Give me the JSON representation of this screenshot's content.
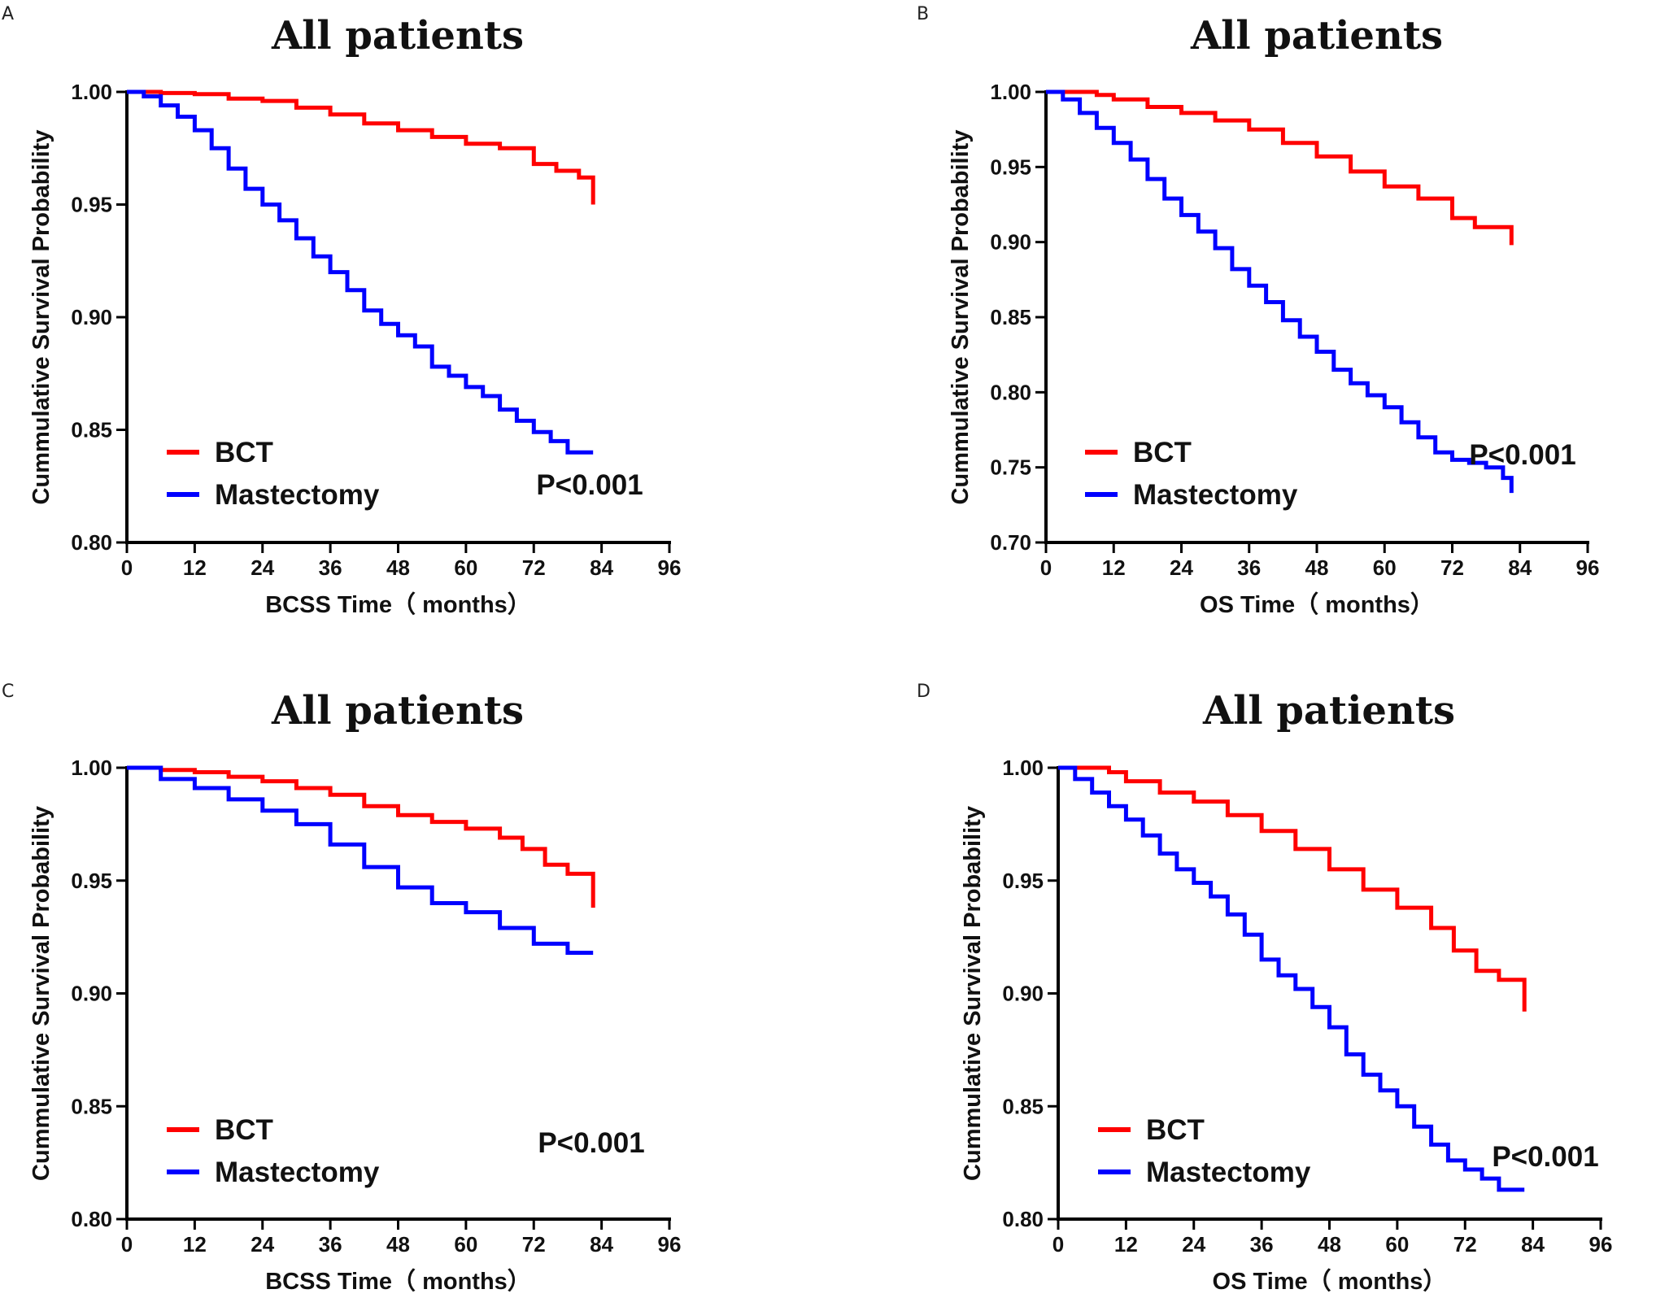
{
  "figure": {
    "background": "#ffffff"
  },
  "chart_data": [
    {
      "panel": "A",
      "type": "line",
      "step": true,
      "title": "All patients",
      "xlabel": "BCSS Time（ months）",
      "ylabel": "Cummulative Survival Probability",
      "xlim": [
        0,
        96
      ],
      "ylim": [
        0.8,
        1.0
      ],
      "xticks": [
        "0",
        "12",
        "24",
        "36",
        "48",
        "60",
        "72",
        "84",
        "96"
      ],
      "yticks": [
        "0.80",
        "0.85",
        "0.90",
        "0.95",
        "1.00"
      ],
      "pvalue": "P<0.001",
      "series": [
        {
          "name": "BCT",
          "color": "#ff0000",
          "x": [
            0,
            6,
            12,
            18,
            24,
            30,
            36,
            42,
            48,
            54,
            60,
            66,
            72,
            76,
            80,
            82.5,
            82.5
          ],
          "y": [
            1.0,
            0.9995,
            0.999,
            0.997,
            0.996,
            0.993,
            0.99,
            0.986,
            0.983,
            0.98,
            0.977,
            0.975,
            0.968,
            0.965,
            0.962,
            0.962,
            0.95
          ]
        },
        {
          "name": "Mastectomy",
          "color": "#0000ff",
          "x": [
            0,
            3,
            6,
            9,
            12,
            15,
            18,
            21,
            24,
            27,
            30,
            33,
            36,
            39,
            42,
            45,
            48,
            51,
            54,
            57,
            60,
            63,
            66,
            69,
            72,
            75,
            78,
            82.5
          ],
          "y": [
            1.0,
            0.998,
            0.994,
            0.989,
            0.983,
            0.975,
            0.966,
            0.957,
            0.95,
            0.943,
            0.935,
            0.927,
            0.92,
            0.912,
            0.903,
            0.897,
            0.892,
            0.887,
            0.878,
            0.874,
            0.869,
            0.865,
            0.859,
            0.854,
            0.849,
            0.845,
            0.84,
            0.84
          ]
        }
      ]
    },
    {
      "panel": "B",
      "type": "line",
      "step": true,
      "title": "All patients",
      "xlabel": "OS Time（ months）",
      "ylabel": "Cummulative Survival Probability",
      "xlim": [
        0,
        96
      ],
      "ylim": [
        0.7,
        1.0
      ],
      "xticks": [
        "0",
        "12",
        "24",
        "36",
        "48",
        "60",
        "72",
        "84",
        "96"
      ],
      "yticks": [
        "0.70",
        "0.75",
        "0.80",
        "0.85",
        "0.90",
        "0.95",
        "1.00"
      ],
      "pvalue": "P<0.001",
      "series": [
        {
          "name": "BCT",
          "color": "#ff0000",
          "x": [
            0,
            6,
            9,
            12,
            18,
            24,
            30,
            36,
            42,
            48,
            54,
            60,
            66,
            72,
            76,
            80,
            82.5,
            82.5
          ],
          "y": [
            1.0,
            1.0,
            0.998,
            0.995,
            0.99,
            0.986,
            0.981,
            0.975,
            0.966,
            0.957,
            0.947,
            0.937,
            0.929,
            0.916,
            0.91,
            0.91,
            0.91,
            0.898
          ]
        },
        {
          "name": "Mastectomy",
          "color": "#0000ff",
          "x": [
            0,
            3,
            6,
            9,
            12,
            15,
            18,
            21,
            24,
            27,
            30,
            33,
            36,
            39,
            42,
            45,
            48,
            51,
            54,
            57,
            60,
            63,
            66,
            69,
            72,
            75,
            78,
            81,
            82.5
          ],
          "y": [
            1.0,
            0.995,
            0.986,
            0.976,
            0.966,
            0.955,
            0.942,
            0.929,
            0.918,
            0.907,
            0.896,
            0.882,
            0.871,
            0.86,
            0.848,
            0.837,
            0.827,
            0.815,
            0.806,
            0.798,
            0.79,
            0.78,
            0.77,
            0.76,
            0.755,
            0.753,
            0.75,
            0.743,
            0.733
          ]
        }
      ]
    },
    {
      "panel": "C",
      "type": "line",
      "step": true,
      "title": "All patients",
      "xlabel": "BCSS Time（ months）",
      "ylabel": "Cummulative Survival Probability",
      "xlim": [
        0,
        96
      ],
      "ylim": [
        0.8,
        1.0
      ],
      "xticks": [
        "0",
        "12",
        "24",
        "36",
        "48",
        "60",
        "72",
        "84",
        "96"
      ],
      "yticks": [
        "0.80",
        "0.85",
        "0.90",
        "0.95",
        "1.00"
      ],
      "pvalue": "P<0.001",
      "series": [
        {
          "name": "BCT",
          "color": "#ff0000",
          "x": [
            0,
            6,
            12,
            18,
            24,
            30,
            36,
            42,
            48,
            54,
            60,
            66,
            70,
            74,
            78,
            82.5,
            82.5
          ],
          "y": [
            1.0,
            0.999,
            0.998,
            0.996,
            0.994,
            0.991,
            0.988,
            0.983,
            0.979,
            0.976,
            0.973,
            0.969,
            0.964,
            0.957,
            0.953,
            0.953,
            0.938
          ]
        },
        {
          "name": "Mastectomy",
          "color": "#0000ff",
          "x": [
            0,
            6,
            12,
            18,
            24,
            30,
            36,
            42,
            48,
            54,
            60,
            66,
            72,
            78,
            82.5
          ],
          "y": [
            1.0,
            0.995,
            0.991,
            0.986,
            0.981,
            0.975,
            0.966,
            0.956,
            0.947,
            0.94,
            0.936,
            0.929,
            0.922,
            0.918,
            0.918
          ]
        }
      ]
    },
    {
      "panel": "D",
      "type": "line",
      "step": true,
      "title": "All patients",
      "xlabel": "OS Time（ months）",
      "ylabel": "Cummulative Survival Probability",
      "xlim": [
        0,
        96
      ],
      "ylim": [
        0.8,
        1.0
      ],
      "xticks": [
        "0",
        "12",
        "24",
        "36",
        "48",
        "60",
        "72",
        "84",
        "96"
      ],
      "yticks": [
        "0.80",
        "0.85",
        "0.90",
        "0.95",
        "1.00"
      ],
      "pvalue": "P<0.001",
      "series": [
        {
          "name": "BCT",
          "color": "#ff0000",
          "x": [
            0,
            6,
            9,
            12,
            18,
            24,
            30,
            36,
            42,
            48,
            54,
            60,
            66,
            70,
            74,
            78,
            82.5,
            82.5
          ],
          "y": [
            1.0,
            1.0,
            0.998,
            0.994,
            0.989,
            0.985,
            0.979,
            0.972,
            0.964,
            0.955,
            0.946,
            0.938,
            0.929,
            0.919,
            0.91,
            0.906,
            0.906,
            0.892
          ]
        },
        {
          "name": "Mastectomy",
          "color": "#0000ff",
          "x": [
            0,
            3,
            6,
            9,
            12,
            15,
            18,
            21,
            24,
            27,
            30,
            33,
            36,
            39,
            42,
            45,
            48,
            51,
            54,
            57,
            60,
            63,
            66,
            69,
            72,
            75,
            78,
            82.5
          ],
          "y": [
            1.0,
            0.995,
            0.989,
            0.983,
            0.977,
            0.97,
            0.962,
            0.955,
            0.949,
            0.943,
            0.935,
            0.926,
            0.915,
            0.908,
            0.902,
            0.894,
            0.885,
            0.873,
            0.864,
            0.857,
            0.85,
            0.841,
            0.833,
            0.826,
            0.822,
            0.818,
            0.813,
            0.813
          ]
        }
      ]
    }
  ]
}
